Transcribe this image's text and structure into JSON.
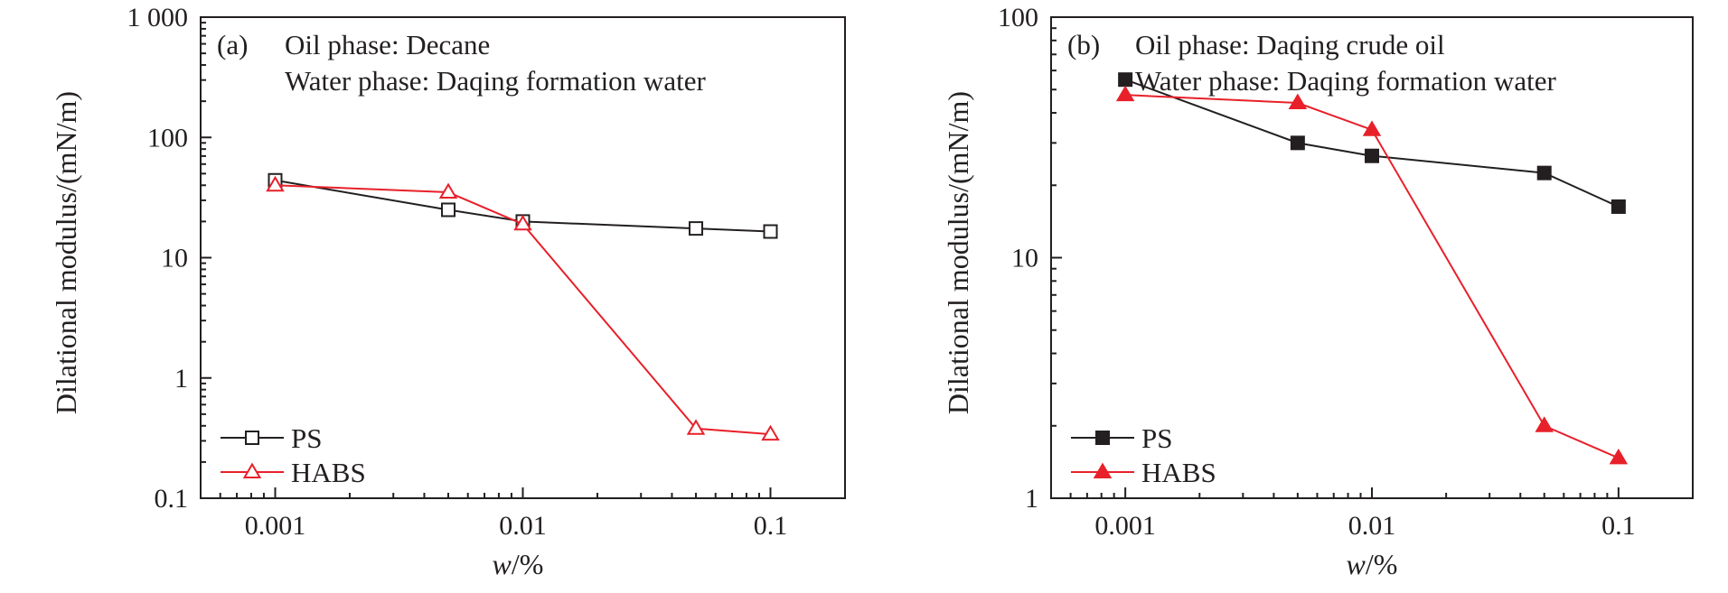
{
  "chart_data": [
    {
      "type": "line",
      "panel_label": "(a)",
      "annotations": [
        "Oil phase: Decane",
        "Water phase: Daqing formation water"
      ],
      "xlabel": "w/%",
      "xlabel_var": "w",
      "xlabel_unit": "/%",
      "ylabel": "Dilational modulus/(mN/m)",
      "xscale": "log",
      "yscale": "log",
      "xlim": [
        0.0005,
        0.2
      ],
      "ylim": [
        0.1,
        1000
      ],
      "xticks": [
        0.001,
        0.01,
        0.1
      ],
      "xtick_labels": [
        "0.001",
        "0.01",
        "0.1"
      ],
      "yticks": [
        0.1,
        1,
        10,
        100,
        1000
      ],
      "ytick_labels": [
        "0.1",
        "1",
        "10",
        "100",
        "1 000"
      ],
      "legend_position": "bottom-left",
      "grid": false,
      "series": [
        {
          "name": "PS",
          "color": "#231f20",
          "marker": "square-open",
          "x": [
            0.001,
            0.005,
            0.01,
            0.05,
            0.1
          ],
          "y": [
            44,
            25,
            20,
            17.5,
            16.5
          ]
        },
        {
          "name": "HABS",
          "color": "#e8202a",
          "marker": "triangle-open",
          "x": [
            0.001,
            0.005,
            0.01,
            0.05,
            0.1
          ],
          "y": [
            40,
            35,
            19,
            0.38,
            0.34
          ]
        }
      ]
    },
    {
      "type": "line",
      "panel_label": "(b)",
      "annotations": [
        "Oil phase: Daqing crude oil",
        "Water phase: Daqing formation water"
      ],
      "xlabel": "w/%",
      "xlabel_var": "w",
      "xlabel_unit": "/%",
      "ylabel": "Dilational modulus/(mN/m)",
      "xscale": "log",
      "yscale": "log",
      "xlim": [
        0.0005,
        0.2
      ],
      "ylim": [
        1,
        100
      ],
      "xticks": [
        0.001,
        0.01,
        0.1
      ],
      "xtick_labels": [
        "0.001",
        "0.01",
        "0.1"
      ],
      "yticks": [
        1,
        10,
        100
      ],
      "ytick_labels": [
        "1",
        "10",
        "100"
      ],
      "legend_position": "bottom-left",
      "grid": false,
      "series": [
        {
          "name": "PS",
          "color": "#231f20",
          "marker": "square-filled",
          "x": [
            0.001,
            0.005,
            0.01,
            0.05,
            0.1
          ],
          "y": [
            55,
            30,
            26.5,
            22.5,
            16.3
          ]
        },
        {
          "name": "HABS",
          "color": "#e8202a",
          "marker": "triangle-filled",
          "x": [
            0.001,
            0.005,
            0.01,
            0.05,
            0.1
          ],
          "y": [
            47.5,
            44,
            34,
            2.0,
            1.47
          ]
        }
      ]
    }
  ]
}
